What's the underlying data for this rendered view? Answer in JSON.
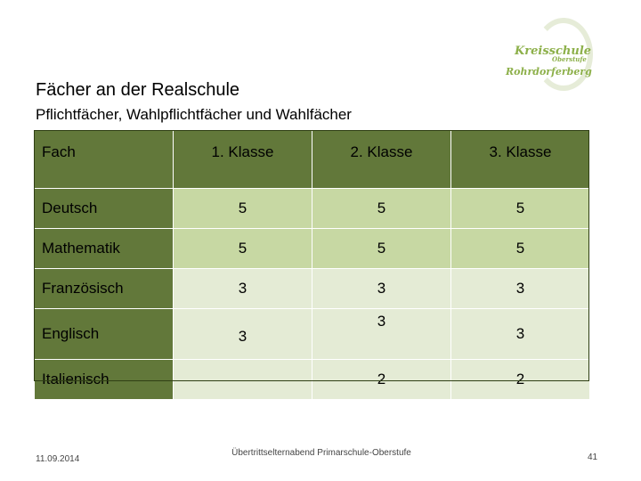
{
  "logo": {
    "line1": "Kreisschule",
    "line2": "Oberstufe",
    "line3": "Rohrdorferberg"
  },
  "title": "Fächer an der Realschule",
  "subtitle": "Pflichtfächer, Wahlpflichtfächer und Wahlfächer",
  "table": {
    "headers": [
      "Fach",
      "1. Klasse",
      "2. Klasse",
      "3. Klasse"
    ],
    "rows": [
      {
        "subject": "Deutsch",
        "k1": "5",
        "k2": "5",
        "k3": "5"
      },
      {
        "subject": "Mathematik",
        "k1": "5",
        "k2": "5",
        "k3": "5"
      },
      {
        "subject": "Französisch",
        "k1": "3",
        "k2": "3",
        "k3": "3"
      },
      {
        "subject": "Englisch",
        "k1": "3",
        "k2": "3",
        "k3": "3"
      },
      {
        "subject": "Italienisch",
        "k1": "",
        "k2": "2",
        "k3": "2"
      }
    ]
  },
  "footer": {
    "date": "11.09.2014",
    "center": "Übertrittselternabend Primarschule-Oberstufe",
    "page": "41"
  },
  "colors": {
    "header": "#62783a",
    "row_green": "#c7d8a3",
    "row_light": "#e4ebd5"
  }
}
